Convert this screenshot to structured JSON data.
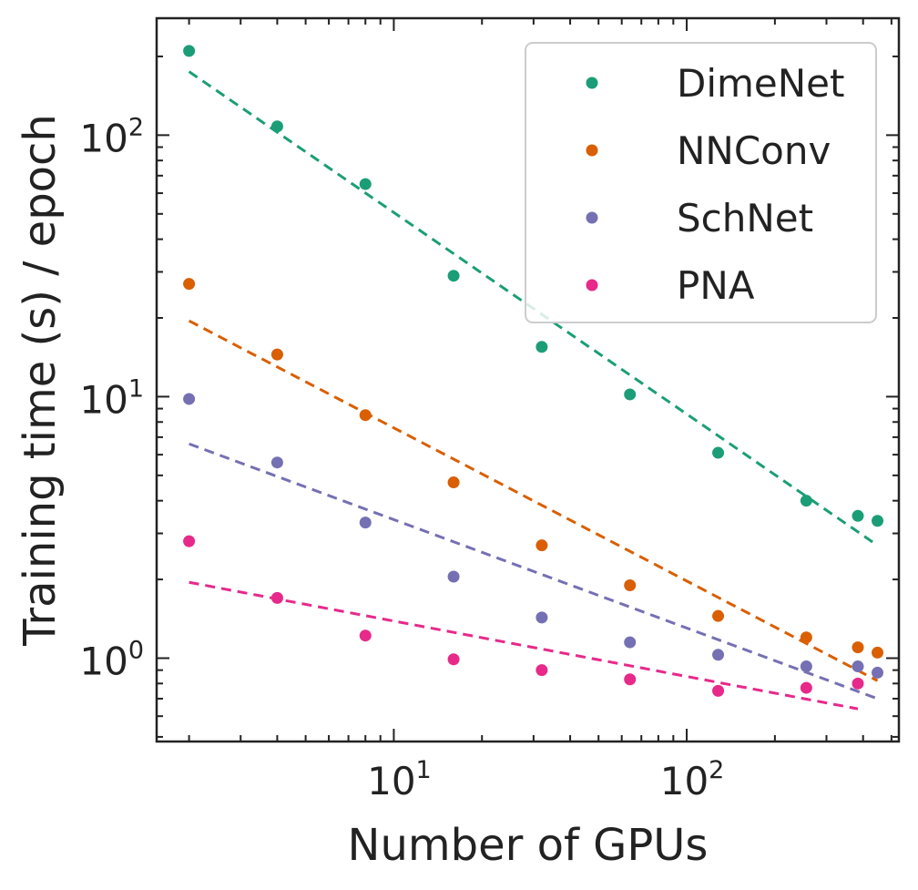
{
  "chart_data": {
    "type": "scatter",
    "title": "",
    "xlabel": "Number of GPUs",
    "ylabel": "Training time (s) / epoch",
    "xscale": "log",
    "yscale": "log",
    "xlim": [
      1.55,
      530
    ],
    "ylim": [
      0.48,
      280
    ],
    "grid": false,
    "legend_position": "top-right",
    "x_ticks": [
      {
        "value": 10,
        "base": "10",
        "exponent": "1"
      },
      {
        "value": 100,
        "base": "10",
        "exponent": "2"
      }
    ],
    "y_ticks": [
      {
        "value": 1,
        "base": "10",
        "exponent": "0"
      },
      {
        "value": 10,
        "base": "10",
        "exponent": "1"
      },
      {
        "value": 100,
        "base": "10",
        "exponent": "2"
      }
    ],
    "series": [
      {
        "name": "DimeNet",
        "color": "#1b9e77",
        "x": [
          2,
          4,
          8,
          16,
          32,
          64,
          128,
          256,
          384,
          448
        ],
        "y": [
          210,
          108,
          65,
          29,
          15.5,
          10.2,
          6.1,
          4.0,
          3.5,
          3.35
        ],
        "fit": {
          "x": [
            2,
            448
          ],
          "y": [
            175,
            2.7
          ]
        }
      },
      {
        "name": "NNConv",
        "color": "#d95f02",
        "x": [
          2,
          4,
          8,
          16,
          32,
          64,
          128,
          256,
          384,
          448
        ],
        "y": [
          27,
          14.5,
          8.5,
          4.7,
          2.7,
          1.9,
          1.45,
          1.2,
          1.1,
          1.05
        ],
        "fit": {
          "x": [
            2,
            448
          ],
          "y": [
            19.5,
            0.82
          ]
        }
      },
      {
        "name": "SchNet",
        "color": "#7570b3",
        "x": [
          2,
          4,
          8,
          16,
          32,
          64,
          128,
          256,
          384,
          448
        ],
        "y": [
          9.8,
          5.6,
          3.3,
          2.05,
          1.43,
          1.15,
          1.03,
          0.93,
          0.93,
          0.88
        ],
        "fit": {
          "x": [
            2,
            448
          ],
          "y": [
            6.6,
            0.7
          ]
        }
      },
      {
        "name": "PNA",
        "color": "#e7298a",
        "x": [
          2,
          4,
          8,
          16,
          32,
          64,
          128,
          256,
          384
        ],
        "y": [
          2.8,
          1.7,
          1.22,
          0.99,
          0.9,
          0.83,
          0.75,
          0.77,
          0.8
        ],
        "fit": {
          "x": [
            2,
            384
          ],
          "y": [
            1.95,
            0.64
          ]
        }
      }
    ]
  }
}
